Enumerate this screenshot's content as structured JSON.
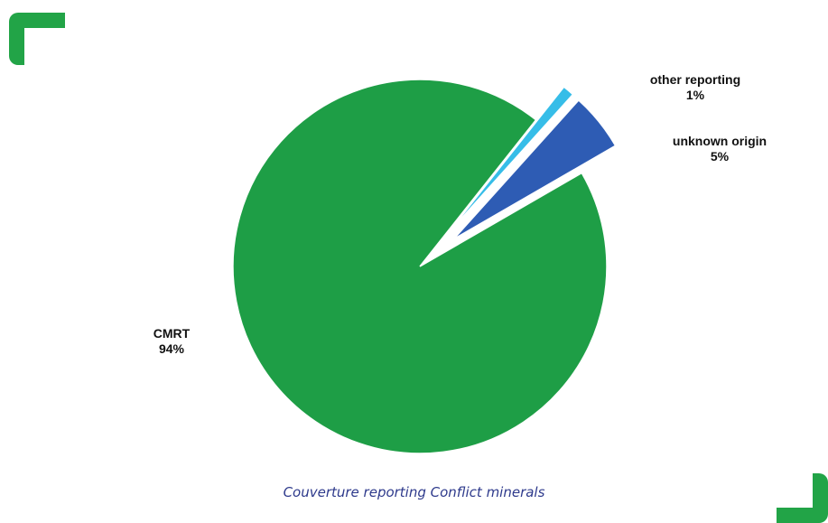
{
  "colors": {
    "accent_green": "#22a447",
    "cmrt": "#1e9e46",
    "unknown_origin": "#2e5cb4",
    "other_reporting": "#36bde8",
    "caption": "#2e3a8c"
  },
  "icons": {
    "top_left": "corner-bracket-icon",
    "bottom_right": "corner-bracket-icon"
  },
  "caption": "Couverture reporting Conflict minerals",
  "chart_data": {
    "type": "pie",
    "title": "",
    "slices": [
      {
        "key": "cmrt",
        "name": "CMRT",
        "value": 94,
        "value_label": "94%",
        "color": "#1e9e46",
        "exploded": false
      },
      {
        "key": "other",
        "name": "other reporting",
        "value": 1,
        "value_label": "1%",
        "color": "#36bde8",
        "exploded": true
      },
      {
        "key": "unknown",
        "name": "unknown origin",
        "value": 5,
        "value_label": "5%",
        "color": "#2e5cb4",
        "exploded": true
      }
    ],
    "start_angle_deg": 60,
    "direction": "clockwise_from_cmrt",
    "legend": "none"
  }
}
